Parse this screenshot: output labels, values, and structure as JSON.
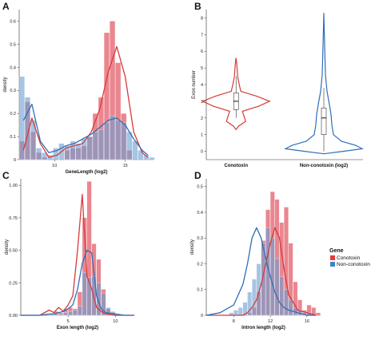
{
  "colors": {
    "conotoxin": "#e35d6a",
    "non_conotoxin": "#6b9fd1",
    "conotoxin_line": "#d63a3a",
    "non_conotoxin_line": "#2f6fb8"
  },
  "legend": {
    "title": "Gene",
    "items": [
      {
        "label": "Conotoxin",
        "color": "#e33b3b"
      },
      {
        "label": "Non-conotoxin",
        "color": "#3f82c8"
      }
    ]
  },
  "chart_data": [
    {
      "panel": "A",
      "type": "bar",
      "xlabel": "GeneLength (log2)",
      "ylabel": "density",
      "xlim": [
        7.5,
        17
      ],
      "ylim": [
        0,
        0.65
      ],
      "xticks": [
        10,
        15
      ],
      "yticks": [
        0,
        0.1,
        0.2,
        0.3,
        0.4,
        0.5,
        0.6
      ],
      "bin_start": 7.5,
      "bin_width": 0.4,
      "series": [
        {
          "name": "Conotoxin",
          "values": [
            0.08,
            0.25,
            0.12,
            0.03,
            0.01,
            0.0,
            0.0,
            0.0,
            0.04,
            0.05,
            0.05,
            0.06,
            0.1,
            0.2,
            0.27,
            0.55,
            0.6,
            0.42,
            0.2,
            0.04,
            0.0,
            0.0,
            0.0,
            0.0
          ]
        },
        {
          "name": "Non-conotoxin",
          "values": [
            0.36,
            0.27,
            0.17,
            0.05,
            0.03,
            0.02,
            0.05,
            0.07,
            0.06,
            0.08,
            0.07,
            0.09,
            0.1,
            0.12,
            0.13,
            0.16,
            0.19,
            0.17,
            0.16,
            0.12,
            0.08,
            0.04,
            0.02,
            0.01
          ]
        }
      ],
      "density_x": [
        7.8,
        8.4,
        9.0,
        9.6,
        10.2,
        10.8,
        11.4,
        12.0,
        12.6,
        13.2,
        13.8,
        14.4,
        15.0,
        15.6,
        16.2,
        16.6
      ],
      "density": [
        {
          "name": "Conotoxin",
          "y": [
            0.04,
            0.18,
            0.07,
            0.01,
            0.02,
            0.05,
            0.06,
            0.07,
            0.12,
            0.22,
            0.38,
            0.49,
            0.36,
            0.12,
            0.03,
            0.01
          ]
        },
        {
          "name": "Non-conotoxin",
          "y": [
            0.17,
            0.24,
            0.08,
            0.03,
            0.04,
            0.06,
            0.07,
            0.09,
            0.11,
            0.14,
            0.17,
            0.18,
            0.15,
            0.09,
            0.04,
            0.02
          ]
        }
      ]
    },
    {
      "panel": "B",
      "type": "violin",
      "xlabel": "",
      "ylabel": "Exon number",
      "categories": [
        "Conotoxin",
        "Non-conotoxin (log2)"
      ],
      "ylim": [
        -0.5,
        8.5
      ],
      "yticks": [
        0,
        1,
        2,
        3,
        4,
        5,
        6,
        7,
        8
      ],
      "box": [
        {
          "name": "Conotoxin",
          "q1": 2.5,
          "median": 3,
          "q3": 3.5,
          "whisker_low": 2,
          "whisker_high": 4.5
        },
        {
          "name": "Non-conotoxin (log2)",
          "q1": 1.0,
          "median": 2.0,
          "q3": 2.6,
          "whisker_low": 0,
          "whisker_high": 3.8
        }
      ]
    },
    {
      "panel": "C",
      "type": "bar",
      "xlabel": "Exon length (log2)",
      "ylabel": "density",
      "xlim": [
        0,
        12
      ],
      "ylim": [
        0,
        1.05
      ],
      "xticks": [
        5,
        10
      ],
      "yticks": [
        0,
        0.25,
        0.5,
        0.75,
        1.0
      ],
      "bin_start": 0,
      "bin_width": 0.5,
      "series": [
        {
          "name": "Conotoxin",
          "values": [
            0.0,
            0.0,
            0.0,
            0.0,
            0.0,
            0.0,
            0.0,
            0.03,
            0.02,
            0.05,
            0.06,
            0.05,
            0.18,
            0.75,
            1.03,
            0.55,
            0.43,
            0.2,
            0.05,
            0.02,
            0.0,
            0.0,
            0.0,
            0.0
          ]
        },
        {
          "name": "Non-conotoxin",
          "values": [
            0.0,
            0.0,
            0.0,
            0.0,
            0.0,
            0.0,
            0.01,
            0.01,
            0.01,
            0.02,
            0.03,
            0.04,
            0.07,
            0.33,
            0.29,
            0.3,
            0.25,
            0.17,
            0.06,
            0.03,
            0.01,
            0.0,
            0.0,
            0.0
          ]
        }
      ],
      "density_x": [
        0,
        2,
        3,
        3.5,
        4,
        4.5,
        5,
        5.5,
        6,
        6.5,
        7,
        7.5,
        8,
        8.5,
        9,
        10,
        11,
        12
      ],
      "density": [
        {
          "name": "Conotoxin",
          "y": [
            0.0,
            0.0,
            0.04,
            0.02,
            0.06,
            0.03,
            0.08,
            0.15,
            0.5,
            0.93,
            0.3,
            0.2,
            0.06,
            0.03,
            0.01,
            0.0,
            0.0,
            0.0
          ]
        },
        {
          "name": "Non-conotoxin",
          "y": [
            0.0,
            0.0,
            0.01,
            0.01,
            0.02,
            0.03,
            0.05,
            0.08,
            0.2,
            0.4,
            0.5,
            0.48,
            0.15,
            0.05,
            0.02,
            0.01,
            0.0,
            0.0
          ]
        }
      ]
    },
    {
      "panel": "D",
      "type": "bar",
      "xlabel": "Intron length (log2)",
      "ylabel": "density",
      "xlim": [
        5,
        17.5
      ],
      "ylim": [
        0,
        0.53
      ],
      "xticks": [
        8,
        12,
        16
      ],
      "yticks": [
        0,
        0.1,
        0.2,
        0.3,
        0.4,
        0.5
      ],
      "bin_start": 5,
      "bin_width": 0.5,
      "series": [
        {
          "name": "Conotoxin",
          "values": [
            0.0,
            0.0,
            0.0,
            0.0,
            0.0,
            0.0,
            0.0,
            0.0,
            0.0,
            0.01,
            0.03,
            0.09,
            0.29,
            0.41,
            0.48,
            0.45,
            0.36,
            0.42,
            0.28,
            0.13,
            0.06,
            0.02,
            0.04,
            0.03,
            0.01
          ]
        },
        {
          "name": "Non-conotoxin",
          "values": [
            0.0,
            0.0,
            0.0,
            0.0,
            0.0,
            0.01,
            0.02,
            0.03,
            0.05,
            0.09,
            0.14,
            0.2,
            0.28,
            0.34,
            0.3,
            0.22,
            0.15,
            0.1,
            0.06,
            0.03,
            0.02,
            0.01,
            0.01,
            0.0,
            0.0
          ]
        }
      ],
      "density_x": [
        5,
        6.5,
        8,
        9,
        9.5,
        10,
        10.5,
        11,
        11.5,
        12,
        12.5,
        13,
        13.5,
        14,
        15,
        16,
        17
      ],
      "density": [
        {
          "name": "Conotoxin",
          "y": [
            0.0,
            0.0,
            0.0,
            0.0,
            0.01,
            0.03,
            0.06,
            0.12,
            0.2,
            0.28,
            0.34,
            0.3,
            0.18,
            0.08,
            0.02,
            0.01,
            0.0
          ]
        },
        {
          "name": "Non-conotoxin",
          "y": [
            0.0,
            0.01,
            0.04,
            0.12,
            0.2,
            0.3,
            0.34,
            0.3,
            0.22,
            0.15,
            0.09,
            0.05,
            0.03,
            0.02,
            0.01,
            0.0,
            0.0
          ]
        }
      ]
    }
  ]
}
